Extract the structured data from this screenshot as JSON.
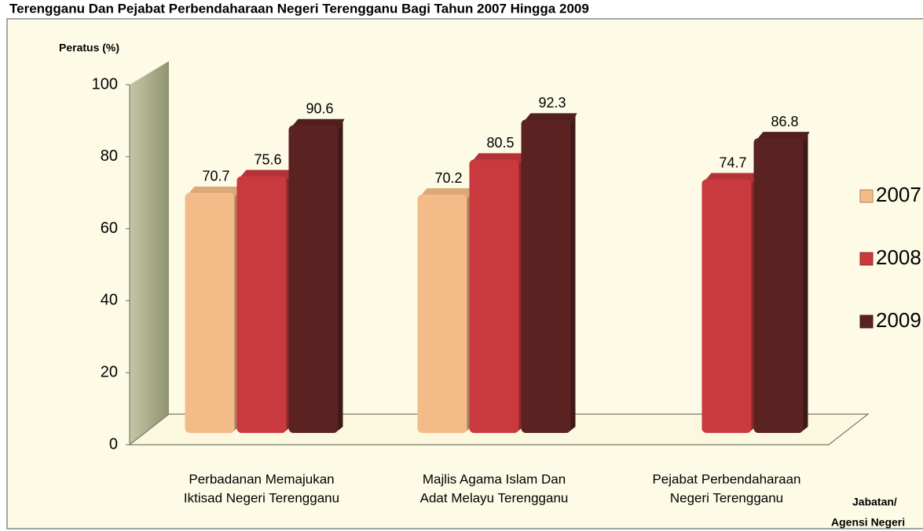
{
  "chart_data": {
    "type": "bar",
    "title": "Terengganu Dan Pejabat Perbendaharaan Negeri Terengganu Bagi Tahun 2007 Hingga 2009",
    "y_label": "Peratus (%)",
    "x_label": [
      "Jabatan/",
      "Agensi Negeri"
    ],
    "categories": [
      [
        "Perbadanan Memajukan",
        "Iktisad Negeri Terengganu"
      ],
      [
        "Majlis Agama Islam Dan",
        "Adat Melayu Terengganu"
      ],
      [
        "Pejabat Perbendaharaan",
        "Negeri Terengganu"
      ]
    ],
    "series": [
      {
        "name": "2007",
        "color": "#f3bb88",
        "values": [
          70.7,
          70.2,
          null
        ]
      },
      {
        "name": "2008",
        "color": "#c9393d",
        "values": [
          75.6,
          80.5,
          74.7
        ]
      },
      {
        "name": "2009",
        "color": "#5b2222",
        "values": [
          90.6,
          92.3,
          86.8
        ]
      }
    ],
    "ylim": [
      0,
      100
    ],
    "yticks": [
      0,
      20,
      40,
      60,
      80,
      100
    ],
    "legend": "right"
  }
}
